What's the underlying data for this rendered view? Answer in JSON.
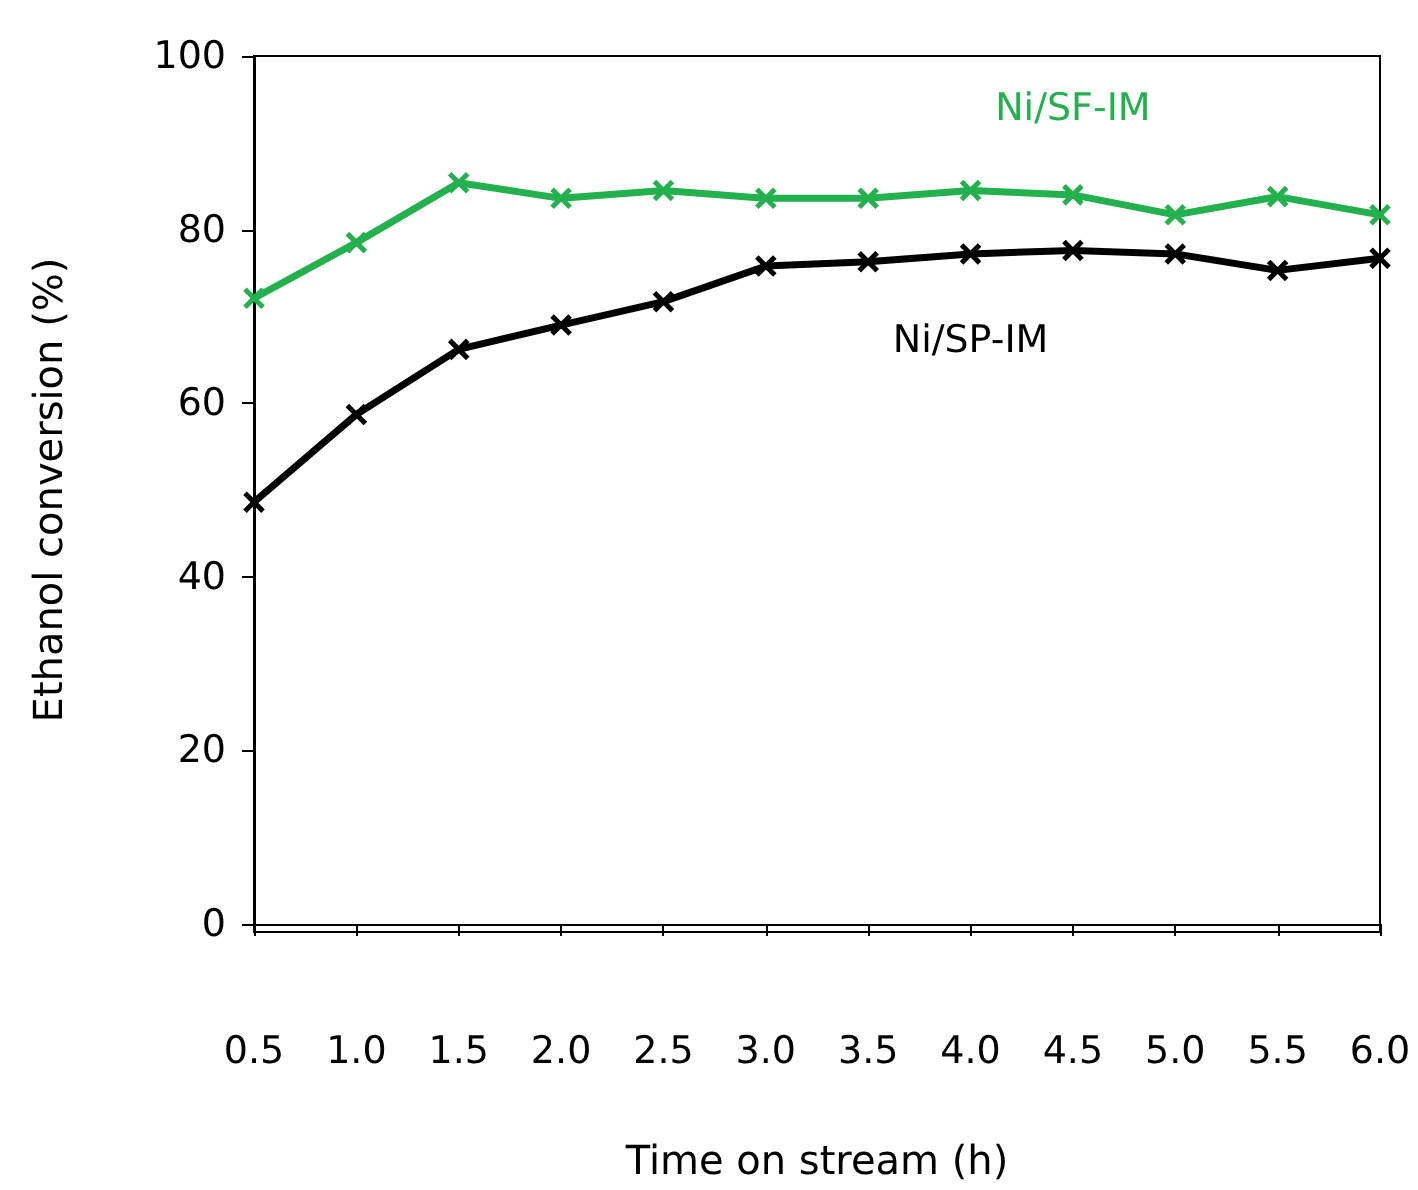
{
  "chart_data": {
    "type": "line",
    "xlabel": "Time on stream (h)",
    "ylabel": "Ethanol conversion (%)",
    "categories": [
      "0.5",
      "1.0",
      "1.5",
      "2.0",
      "2.5",
      "3.0",
      "3.5",
      "4.0",
      "4.5",
      "5.0",
      "5.5",
      "6.0"
    ],
    "series": [
      {
        "name": "Ni/SF-IM",
        "color": "#22b14c",
        "values": [
          72.1,
          78.5,
          85.4,
          83.6,
          84.5,
          83.6,
          83.6,
          84.5,
          84.0,
          81.7,
          83.8,
          81.7
        ]
      },
      {
        "name": "Ni/SP-IM",
        "color": "#000000",
        "values": [
          48.6,
          58.7,
          66.2,
          69.0,
          71.7,
          75.8,
          76.3,
          77.2,
          77.6,
          77.2,
          75.3,
          76.7
        ]
      }
    ],
    "ylim": [
      0,
      100
    ],
    "yticks": [
      0,
      20,
      40,
      60,
      80,
      100
    ],
    "grid": false,
    "legend": false,
    "marker": "cross",
    "line_style": "solid"
  }
}
